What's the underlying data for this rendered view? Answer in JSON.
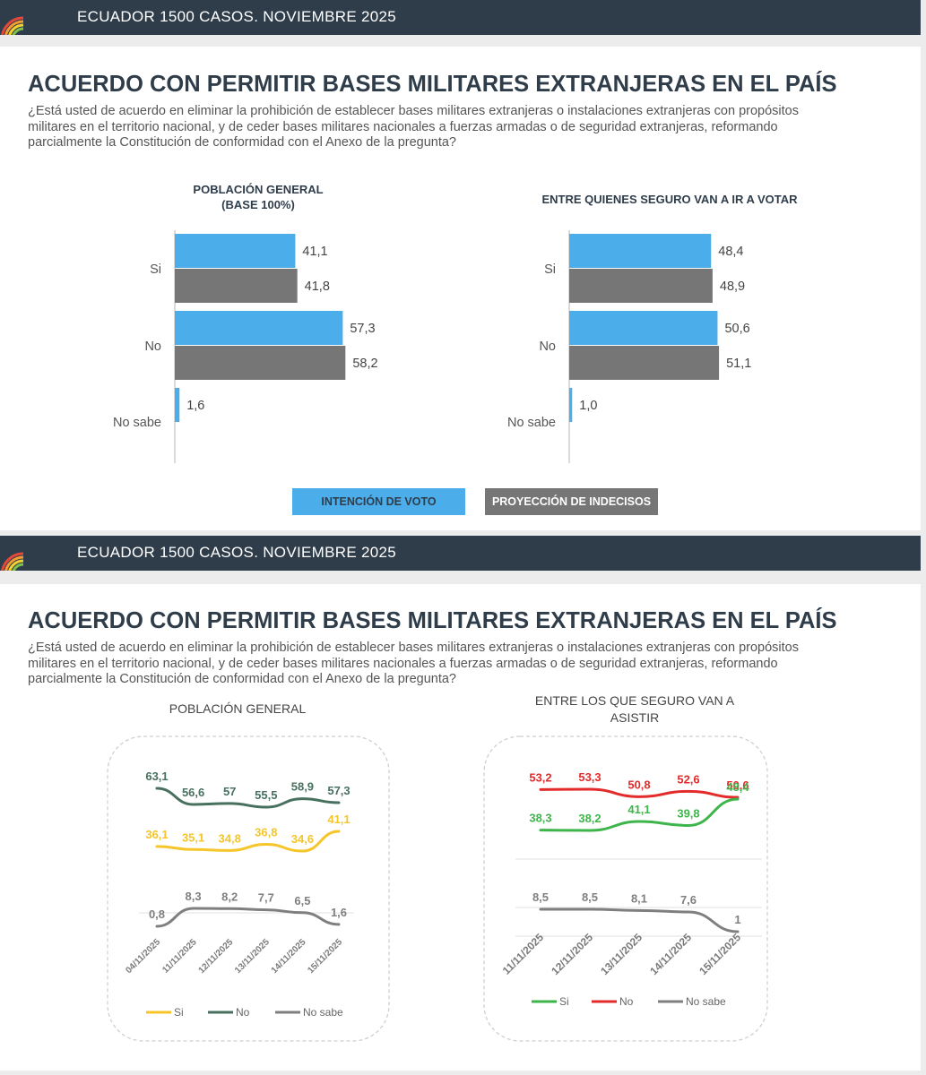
{
  "header": {
    "text": "ECUADOR 1500 CASOS. NOVIEMBRE 2025"
  },
  "slides": [
    {
      "title": "ACUERDO CON PERMITIR BASES MILITARES EXTRANJERAS EN EL PAÍS",
      "question_lines": [
        "¿Está usted de acuerdo en eliminar la prohibición de establecer bases militares extranjeras o instalaciones extranjeras con propósitos",
        "militares en el territorio nacional, y de ceder bases militares nacionales a fuerzas armadas o de seguridad extranjeras, reformando",
        "parcialmente la Constitución de conformidad con el Anexo de la pregunta?"
      ]
    },
    {
      "title": "ACUERDO CON PERMITIR BASES MILITARES EXTRANJERAS EN EL PAÍS",
      "question_lines": [
        "¿Está usted de acuerdo en eliminar la prohibición de establecer bases militares extranjeras o instalaciones extranjeras con propósitos",
        "militares en el territorio nacional, y de ceder bases militares nacionales a fuerzas armadas o de seguridad extranjeras, reformando",
        "parcialmente la Constitución de conformidad con el Anexo de la pregunta?"
      ]
    }
  ],
  "legend_buttons": [
    {
      "label": "INTENCIÓN DE VOTO",
      "color": "#4badea",
      "text_color": "#2f3d4b"
    },
    {
      "label": "PROYECCIÓN DE INDECISOS",
      "color": "#767676",
      "text_color": "#ffffff"
    }
  ],
  "colors": {
    "header_bg": "#2f3d4b",
    "intencion": "#4badea",
    "proyeccion": "#767676",
    "si_line": "#f5c52a",
    "no_line": "#47705f",
    "nosabe_line": "#7f7f7f",
    "si_line_2": "#3db54a",
    "no_line_2": "#e32b2b"
  },
  "chart_data": [
    {
      "type": "bar",
      "orientation": "horizontal",
      "title_lines": [
        "POBLACIÓN GENERAL",
        "(BASE 100%)"
      ],
      "categories": [
        "Si",
        "No",
        "No sabe"
      ],
      "series": [
        {
          "name": "INTENCIÓN DE VOTO",
          "values": [
            41.1,
            57.3,
            1.6
          ],
          "labels": [
            "41,1",
            "57,3",
            "1,6"
          ]
        },
        {
          "name": "PROYECCIÓN DE INDECISOS",
          "values": [
            41.8,
            58.2,
            null
          ],
          "labels": [
            "41,8",
            "58,2",
            ""
          ]
        }
      ]
    },
    {
      "type": "bar",
      "orientation": "horizontal",
      "title_lines": [
        "ENTRE QUIENES SEGURO VAN A IR A VOTAR"
      ],
      "categories": [
        "Si",
        "No",
        "No sabe"
      ],
      "series": [
        {
          "name": "INTENCIÓN DE VOTO",
          "values": [
            48.4,
            50.6,
            1.0
          ],
          "labels": [
            "48,4",
            "50,6",
            "1,0"
          ]
        },
        {
          "name": "PROYECCIÓN DE INDECISOS",
          "values": [
            48.9,
            51.1,
            null
          ],
          "labels": [
            "48,9",
            "51,1",
            ""
          ]
        }
      ]
    },
    {
      "type": "line",
      "title_lines": [
        "POBLACIÓN GENERAL"
      ],
      "x": [
        "04/11/2025",
        "11/11/2025",
        "12/11/2025",
        "13/11/2025",
        "14/11/2025",
        "15/11/2025"
      ],
      "series": [
        {
          "name": "Si",
          "values": [
            36.1,
            35.1,
            34.8,
            36.8,
            34.6,
            41.1
          ],
          "labels": [
            "36,1",
            "35,1",
            "34,8",
            "36,8",
            "34,6",
            "41,1"
          ]
        },
        {
          "name": "No",
          "values": [
            63.1,
            56.6,
            57,
            55.5,
            58.9,
            57.3
          ],
          "labels": [
            "63,1",
            "56,6",
            "57",
            "55,5",
            "58,9",
            "57,3"
          ]
        },
        {
          "name": "No sabe",
          "values": [
            0.8,
            8.3,
            8.2,
            7.7,
            6.5,
            1.6
          ],
          "labels": [
            "0,8",
            "8,3",
            "8,2",
            "7,7",
            "6,5",
            "1,6"
          ]
        }
      ]
    },
    {
      "type": "line",
      "title_lines": [
        "ENTRE LOS QUE SEGURO VAN A",
        "ASISTIR"
      ],
      "x": [
        "11/11/2025",
        "12/11/2025",
        "13/11/2025",
        "14/11/2025",
        "15/11/2025"
      ],
      "series": [
        {
          "name": "Si",
          "values": [
            38.3,
            38.2,
            41.1,
            39.8,
            48.4
          ],
          "labels": [
            "38,3",
            "38,2",
            "41,1",
            "39,8",
            "48,4"
          ]
        },
        {
          "name": "No",
          "values": [
            53.2,
            53.3,
            50.8,
            52.6,
            50.6
          ],
          "labels": [
            "53,2",
            "53,3",
            "50,8",
            "52,6",
            "50,6"
          ]
        },
        {
          "name": "No sabe",
          "values": [
            8.5,
            8.5,
            8.1,
            7.6,
            1
          ],
          "labels": [
            "8,5",
            "8,5",
            "8,1",
            "7,6",
            "1"
          ]
        }
      ]
    }
  ]
}
